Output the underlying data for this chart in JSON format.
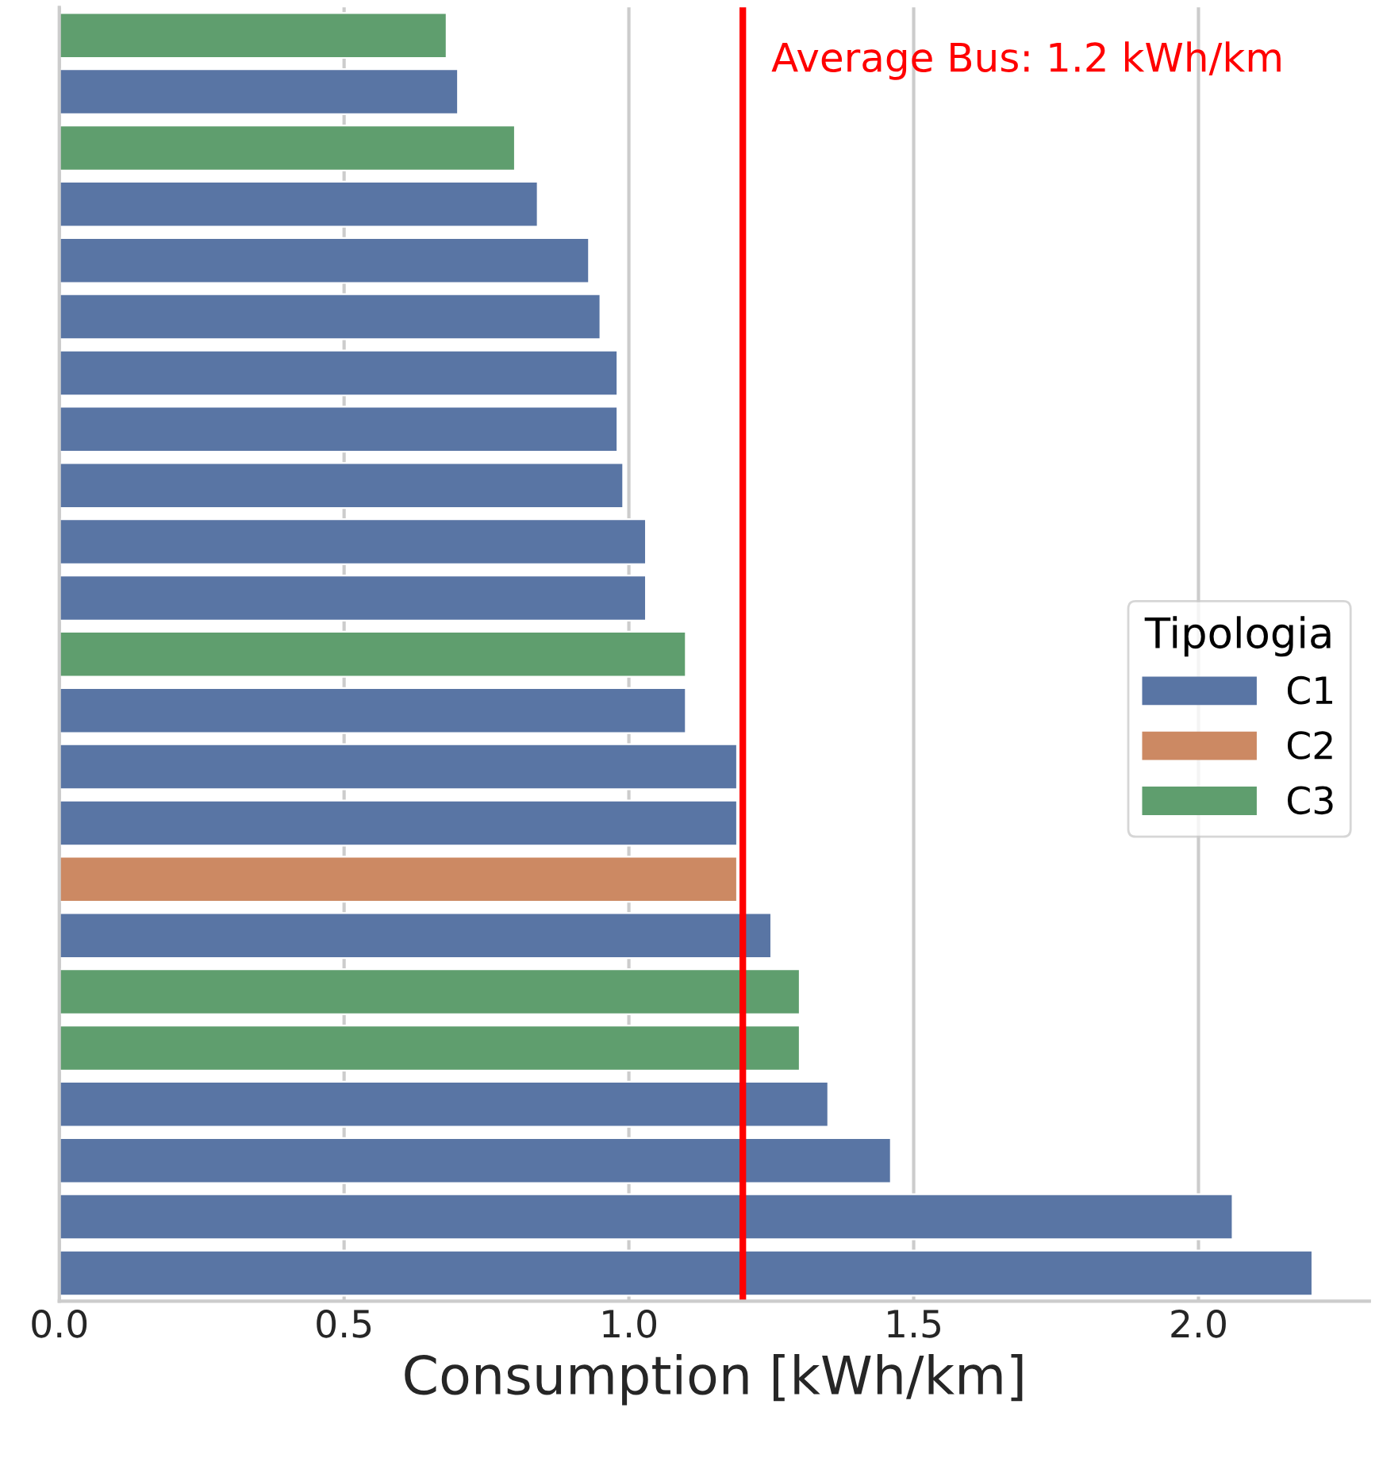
{
  "chart_data": {
    "type": "bar",
    "orientation": "horizontal",
    "xlabel": "Consumption [kWh/km]",
    "legend_title": "Tipologia",
    "legend": "right",
    "grid": "x",
    "tick_labels": "x",
    "categories": [
      null,
      null,
      null,
      null,
      null,
      null,
      null,
      null,
      null,
      null,
      null,
      null,
      null,
      null,
      null,
      null,
      null,
      null,
      null,
      null,
      null,
      null,
      null
    ],
    "series": [
      {
        "name": "C1",
        "color": "#5975a4",
        "values": [
          null,
          0.7,
          null,
          0.84,
          0.93,
          0.95,
          0.98,
          0.98,
          0.99,
          1.03,
          1.03,
          null,
          1.1,
          1.19,
          1.19,
          null,
          1.25,
          null,
          null,
          1.35,
          1.46,
          2.06,
          2.2
        ]
      },
      {
        "name": "C2",
        "color": "#cc8963",
        "values": [
          null,
          null,
          null,
          null,
          null,
          null,
          null,
          null,
          null,
          null,
          null,
          null,
          null,
          null,
          null,
          1.19,
          null,
          null,
          null,
          null,
          null,
          null,
          null
        ]
      },
      {
        "name": "C3",
        "color": "#5f9e6e",
        "values": [
          0.68,
          null,
          0.8,
          null,
          null,
          null,
          null,
          null,
          null,
          null,
          null,
          1.1,
          null,
          null,
          null,
          null,
          null,
          1.3,
          1.3,
          null,
          null,
          null,
          null
        ]
      }
    ],
    "xlim": [
      0,
      2.3
    ],
    "xticks": [
      {
        "value": 0,
        "label": "0.0"
      },
      0.5,
      {
        "value": 1,
        "label": "1.0"
      },
      1.5,
      {
        "value": 2,
        "label": "2.0"
      }
    ],
    "ref_lines": [
      {
        "axis": "x",
        "value": 1.2,
        "label": "Average Bus: 1.2 kWh/km",
        "color": "#ff0000"
      }
    ]
  }
}
